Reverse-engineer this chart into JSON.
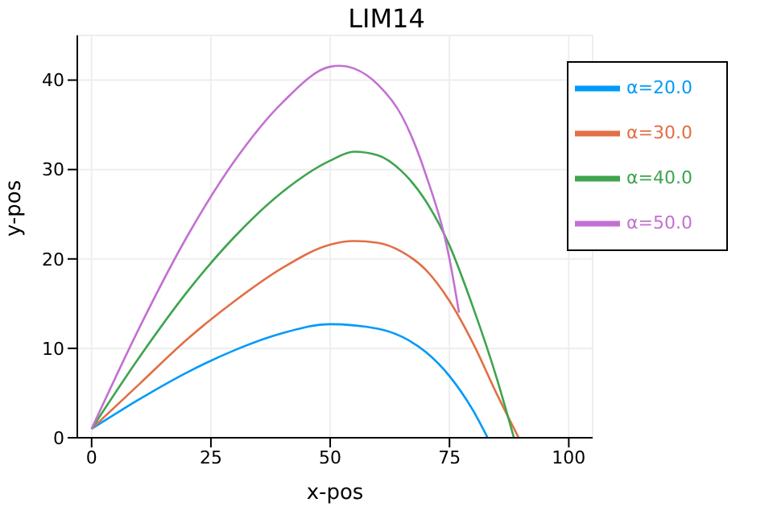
{
  "chart_data": {
    "type": "line",
    "title": "LIM14",
    "xlabel": "x-pos",
    "ylabel": "y-pos",
    "xlim": [
      -3,
      105
    ],
    "xticks": [
      0,
      25,
      50,
      75,
      100
    ],
    "ylim": [
      0,
      45
    ],
    "yticks": [
      0,
      10,
      20,
      30,
      40
    ],
    "grid": true,
    "legend": "top right",
    "marker": "none",
    "line_style": "solid",
    "series": [
      {
        "name": "α=20.0",
        "color": "#009af9",
        "x": [
          0,
          10,
          20,
          30,
          40,
          50,
          60,
          65,
          70,
          75,
          80,
          83
        ],
        "values": [
          1,
          4.3,
          7.3,
          9.8,
          11.7,
          12.7,
          12.2,
          11.3,
          9.6,
          6.9,
          3.0,
          0
        ]
      },
      {
        "name": "α=30.0",
        "color": "#e26f46",
        "x": [
          0,
          10,
          20,
          30,
          40,
          50,
          55,
          60,
          65,
          70,
          75,
          80,
          85,
          89.5
        ],
        "values": [
          1,
          6,
          11,
          15.3,
          19,
          21.6,
          22,
          21.8,
          20.8,
          18.8,
          15.3,
          10.5,
          4.8,
          0
        ]
      },
      {
        "name": "α=40.0",
        "color": "#3ea44e",
        "x": [
          0,
          10,
          20,
          30,
          40,
          50,
          55,
          60,
          65,
          70,
          75,
          80,
          85,
          88.5
        ],
        "values": [
          1,
          9,
          16.3,
          22.5,
          27.5,
          31,
          32,
          31.6,
          29.8,
          26.5,
          21.5,
          14.5,
          6.5,
          0
        ]
      },
      {
        "name": "α=50.0",
        "color": "#c271d2",
        "x": [
          0,
          10,
          20,
          30,
          40,
          50,
          52,
          55,
          60,
          65,
          70,
          75,
          77
        ],
        "values": [
          1,
          12.3,
          22.5,
          31,
          37.5,
          41.5,
          41.6,
          41.3,
          39.5,
          36,
          29.5,
          20,
          14
        ]
      }
    ]
  }
}
